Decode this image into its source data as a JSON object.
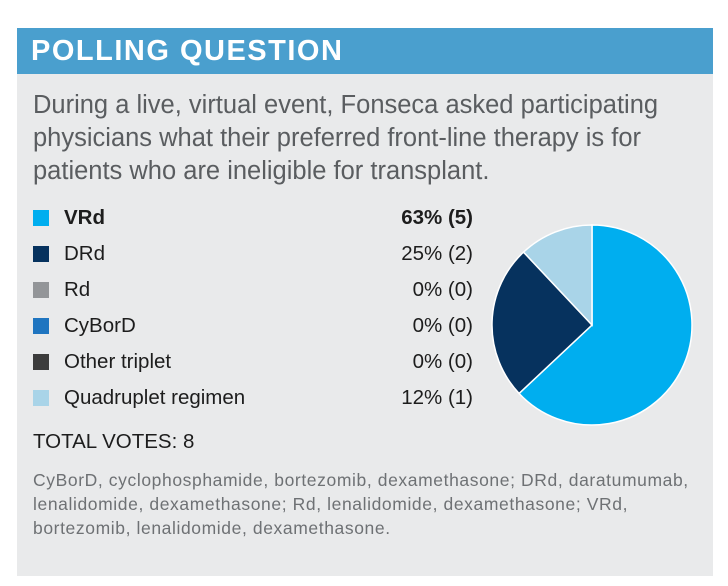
{
  "header": {
    "title": "POLLING QUESTION"
  },
  "question": "During a live, virtual event, Fonseca asked participating physicians what their preferred front-line therapy is for patients who are ineligible for transplant.",
  "chart_data": {
    "type": "pie",
    "title": "",
    "slices": [
      {
        "label": "VRd",
        "percent": 63,
        "votes": 5,
        "value_label": "63% (5)",
        "color": "#00aeef",
        "bold": true
      },
      {
        "label": "DRd",
        "percent": 25,
        "votes": 2,
        "value_label": "25% (2)",
        "color": "#06325e",
        "bold": false
      },
      {
        "label": "Rd",
        "percent": 0,
        "votes": 0,
        "value_label": "0% (0)",
        "color": "#939598",
        "bold": false
      },
      {
        "label": "CyBorD",
        "percent": 0,
        "votes": 0,
        "value_label": "0% (0)",
        "color": "#1f75c0",
        "bold": false
      },
      {
        "label": "Other triplet",
        "percent": 0,
        "votes": 0,
        "value_label": "0% (0)",
        "color": "#3c3c3c",
        "bold": false
      },
      {
        "label": "Quadruplet regimen",
        "percent": 12,
        "votes": 1,
        "value_label": "12% (1)",
        "color": "#a9d4e8",
        "bold": false
      }
    ],
    "total_votes": 8
  },
  "total_label": "TOTAL VOTES: 8",
  "footnote": "CyBorD, cyclophosphamide, bortezomib, dexamethasone; DRd, daratumumab, lenalidomide, dexamethasone; Rd, lenalidomide, dexamethasone; VRd, bortezomib, lenalidomide, dexamethasone."
}
